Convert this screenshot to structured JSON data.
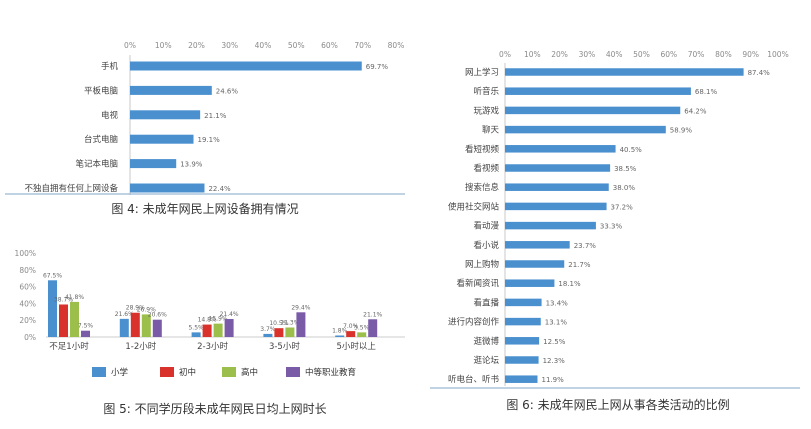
{
  "chart_data": [
    {
      "type": "bar",
      "orientation": "horizontal",
      "caption": "图 4: 未成年网民上网设备拥有情况",
      "categories": [
        "手机",
        "平板电脑",
        "电视",
        "台式电脑",
        "笔记本电脑",
        "不独自拥有任何上网设备"
      ],
      "values": [
        69.7,
        24.6,
        21.1,
        19.1,
        13.9,
        22.4
      ],
      "value_labels": [
        "69.7%",
        "24.6%",
        "21.1%",
        "19.1%",
        "13.9%",
        "22.4%"
      ],
      "xlim": [
        0,
        80
      ],
      "ticks": [
        "0%",
        "10%",
        "20%",
        "30%",
        "40%",
        "50%",
        "60%",
        "70%",
        "80%"
      ],
      "color": "#4a90cf"
    },
    {
      "type": "bar",
      "orientation": "vertical",
      "caption": "图 5: 不同学历段未成年网民日均上网时长",
      "categories": [
        "不足1小时",
        "1-2小时",
        "2-3小时",
        "3-5小时",
        "5小时以上"
      ],
      "ylim": [
        0,
        100
      ],
      "ticks": [
        "0%",
        "20%",
        "40%",
        "60%",
        "80%",
        "100%"
      ],
      "series": [
        {
          "name": "小学",
          "color": "#4a90cf",
          "values": [
            67.5,
            21.6,
            5.5,
            3.7,
            1.8
          ],
          "labels": [
            "67.5%",
            "21.6%",
            "5.5%",
            "3.7%",
            "1.8%"
          ]
        },
        {
          "name": "初中",
          "color": "#d9312b",
          "values": [
            38.7,
            28.9,
            14.8,
            10.5,
            7.0
          ],
          "labels": [
            "38.7%",
            "28.9%",
            "14.8%",
            "10.5%",
            "7.0%"
          ]
        },
        {
          "name": "高中",
          "color": "#9bbf4a",
          "values": [
            41.8,
            26.9,
            15.9,
            11.3,
            5.5
          ],
          "labels": [
            "41.8%",
            "26.9%",
            "15.9%",
            "11.3%",
            "5.5%"
          ]
        },
        {
          "name": "中等职业教育",
          "color": "#7a5ba8",
          "values": [
            7.5,
            20.6,
            21.4,
            29.4,
            21.1
          ],
          "labels": [
            "7.5%",
            "20.6%",
            "21.4%",
            "29.4%",
            "21.1%"
          ]
        }
      ]
    },
    {
      "type": "bar",
      "orientation": "horizontal",
      "caption": "图 6: 未成年网民上网从事各类活动的比例",
      "categories": [
        "网上学习",
        "听音乐",
        "玩游戏",
        "聊天",
        "看短视频",
        "看视频",
        "搜索信息",
        "使用社交网站",
        "看动漫",
        "看小说",
        "网上购物",
        "看新闻资讯",
        "看直播",
        "进行内容创作",
        "逛微博",
        "逛论坛",
        "听电台、听书"
      ],
      "values": [
        87.4,
        68.1,
        64.2,
        58.9,
        40.5,
        38.5,
        38.0,
        37.2,
        33.3,
        23.7,
        21.7,
        18.1,
        13.4,
        13.1,
        12.5,
        12.3,
        11.9
      ],
      "value_labels": [
        "87.4%",
        "68.1%",
        "64.2%",
        "58.9%",
        "40.5%",
        "38.5%",
        "38.0%",
        "37.2%",
        "33.3%",
        "23.7%",
        "21.7%",
        "18.1%",
        "13.4%",
        "13.1%",
        "12.5%",
        "12.3%",
        "11.9%"
      ],
      "xlim": [
        0,
        100
      ],
      "ticks": [
        "0%",
        "10%",
        "20%",
        "30%",
        "40%",
        "50%",
        "60%",
        "70%",
        "80%",
        "90%",
        "100%"
      ],
      "color": "#4a90cf"
    }
  ]
}
